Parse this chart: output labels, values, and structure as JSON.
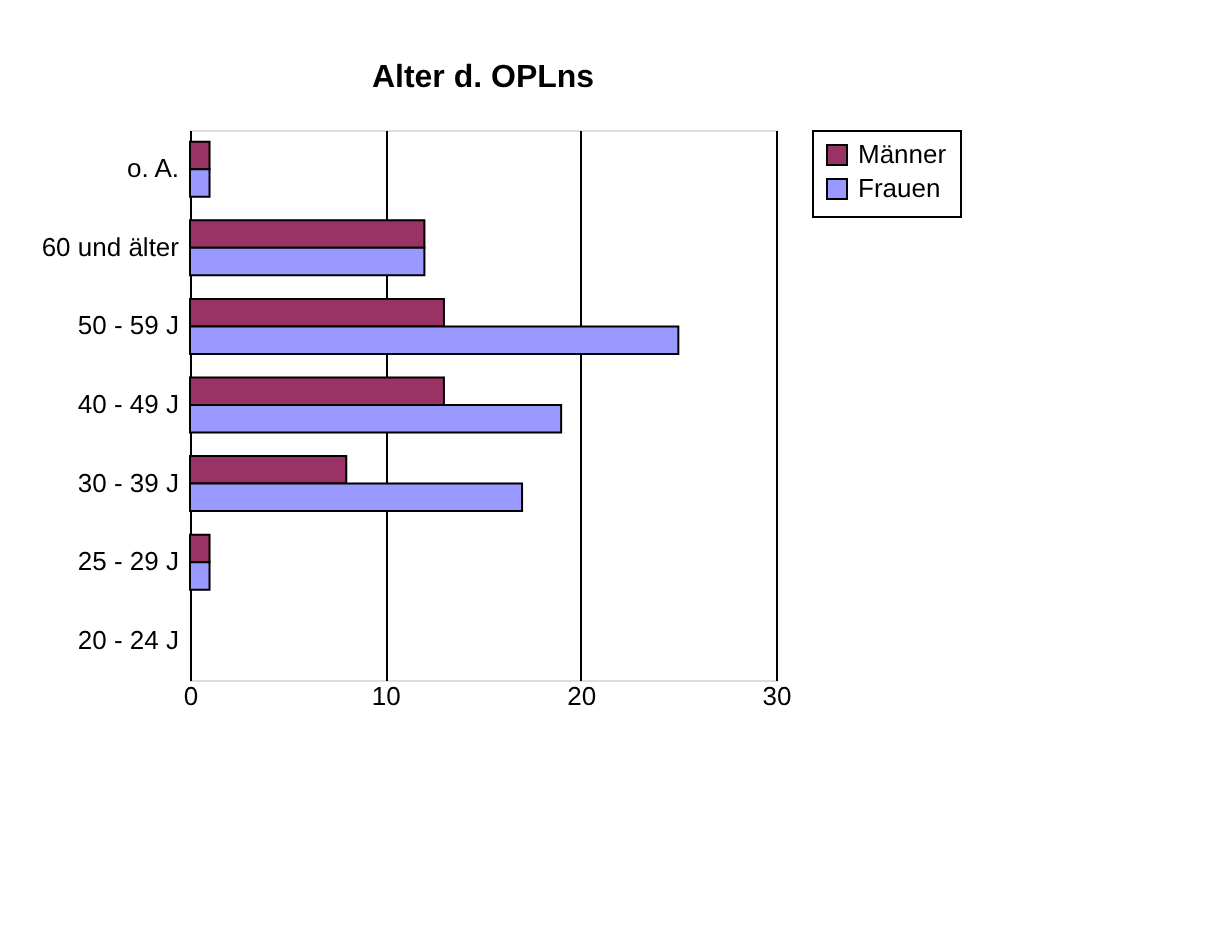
{
  "chart_data": {
    "type": "bar",
    "orientation": "horizontal",
    "title": "Alter d. OPLns",
    "categories": [
      "o. A.",
      "60 und älter",
      "50 - 59 J",
      "40 - 49 J",
      "30 - 39 J",
      "25 - 29 J",
      "20 - 24 J"
    ],
    "series": [
      {
        "name": "Männer",
        "color": "#993366",
        "values": [
          1,
          12,
          13,
          13,
          8,
          1,
          0
        ]
      },
      {
        "name": "Frauen",
        "color": "#9999ff",
        "values": [
          1,
          12,
          25,
          19,
          17,
          1,
          0
        ]
      }
    ],
    "xlim": [
      0,
      30
    ],
    "xticks": [
      0,
      10,
      20,
      30
    ],
    "grid": "x",
    "legend": "right"
  }
}
